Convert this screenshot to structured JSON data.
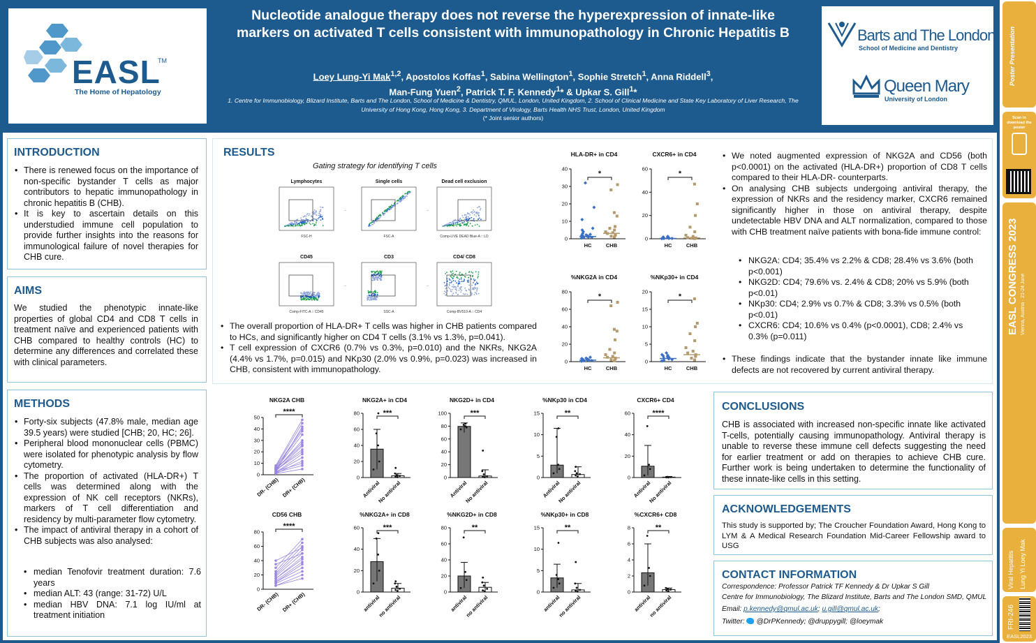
{
  "header": {
    "title": "Nucleotide analogue therapy does not reverse the hyperexpression of innate-like markers on activated T cells consistent with immunopathology in Chronic Hepatitis B",
    "author_presenter": "Loey Lung-Yi Mak",
    "author_presenter_sup": "1,2",
    "authors_rest_1": ", Apostolos Koffas",
    "sup1": "1",
    "authors_rest_2": ", Sabina Wellington",
    "sup2": "1",
    "authors_rest_3": ", Sophie Stretch",
    "sup3": "1",
    "authors_rest_4": ", Anna Riddell",
    "sup4": "3",
    "authors_rest_5": ",",
    "authors_line2_a": "Man-Fung Yuen",
    "sup5": "2",
    "authors_line2_b": ", Patrick T. F. Kennedy",
    "sup6": "1",
    "authors_line2_c": "* & Upkar S. Gill",
    "sup7": "1",
    "authors_line2_d": "*",
    "affiliations": "1. Centre for Immunobiology, Blizard Institute, Barts and The London, School of Medicine & Dentistry, QMUL, London, United Kingdom, 2. School of Clinical Medicine and State Key Laboratory of Liver Research, The University of Hong Kong, Hong Kong, 3. Department of Virology, Barts Health NHS Trust, London, United Kingdom",
    "joint_note": "(* Joint senior authors)"
  },
  "logos": {
    "easl_word": "EASL",
    "easl_tm": "TM",
    "easl_tagline": "The Home of Hepatology",
    "barts_name": "Barts and The London",
    "barts_sub": "School of Medicine and Dentistry",
    "qm_name": "Queen Mary",
    "qm_sub": "University of London"
  },
  "sections": {
    "introduction": {
      "heading": "INTRODUCTION",
      "bullets": [
        "There is renewed focus on the importance of non-specific bystander T cells as major contributors to hepatic immunopathology in chronic hepatitis B (CHB).",
        "It is key to ascertain details on this understudied immune cell population to provide further insights into the reasons for immunological failure of novel therapies for CHB cure."
      ]
    },
    "aims": {
      "heading": "AIMS",
      "text": "We studied the phenotypic innate-like properties of global CD4 and CD8 T cells in treatment naïve and experienced patients with CHB compared to healthy controls (HC) to determine any differences and correlated these with clinical parameters."
    },
    "methods": {
      "heading": "METHODS",
      "bullets": [
        "Forty-six subjects (47.8% male, median age 39.5 years) were studied [CHB; 20, HC; 26].",
        "Peripheral blood mononuclear cells (PBMC) were isolated for phenotypic analysis by flow cytometry.",
        "The proportion of activated (HLA-DR+) T cells was determined along with the expression of NK cell receptors (NKRs), markers of T cell differentiation and residency by multi-parameter flow cytometry.",
        "The impact of antiviral therapy in a cohort of CHB subjects was also analysed:"
      ],
      "sub_bullets": [
        "median Tenofovir treatment duration: 7.6 years",
        "median ALT: 43 (range: 31-72) U/L",
        "median HBV DNA: 7.1 log IU/ml at treatment initiation"
      ]
    },
    "results": {
      "heading": "RESULTS",
      "gating_caption": "Gating strategy for identifying T cells",
      "gating_panels": [
        "Lymphocytes",
        "Single cells",
        "Dead cell exclusion",
        "CD45",
        "CD3",
        "CD4/ CD8"
      ],
      "gating_xlabels": [
        "FSC-H",
        "FSC-A",
        "Comp-LIVE DEAD Blue-A :: LD",
        "Comp-FITC-A :: CD45",
        "SSC-A",
        "Comp-BV510-A :: CD4"
      ],
      "bullets_mid": [
        "The overall proportion of HLA-DR+ T cells was higher in CHB patients compared to HCs, and significantly higher on CD4 T cells (3.1% vs 1.3%, p=0.041).",
        "T cell expression of CXCR6 (0.7% vs 0.3%, p=0.010) and the NKRs, NKG2A (4.4% vs 1.7%, p=0.015) and NKp30 (2.0% vs 0.9%, p=0.023) was increased in CHB, consistent with immunopathology."
      ],
      "bullets_right": [
        "We noted augmented expression of NKG2A and CD56 (both p<0.0001) on the activated (HLA-DR+) proportion of CD8 T cells compared to their HLA-DR- counterparts.",
        "On analysing CHB subjects undergoing antiviral therapy, the expression of NKRs and the residency marker, CXCR6 remained significantly higher in those on antiviral therapy, despite undetectable HBV DNA and ALT normalization, compared to those with CHB treatment naïve patients with bona-fide immune control:"
      ],
      "right_sub": [
        "NKG2A: CD4; 35.4% vs 2.2% & CD8; 28.4% vs 3.6% (both p<0.001)",
        "NKG2D: CD4; 79.6% vs. 2.4% & CD8; 20% vs 5.9% (both p<0.01)",
        "NKp30: CD4; 2.9% vs 0.7% & CD8; 3.3% vs 0.5% (both p<0.01)",
        "CXCR6: CD4; 10.6% vs 0.4% (p<0.0001), CD8; 2.4% vs 0.3% (p=0.011)"
      ],
      "bullet_final": "These findings indicate that the bystander innate like immune defects are not recovered by current antiviral therapy."
    },
    "conclusions": {
      "heading": "CONCLUSIONS",
      "text": "CHB is associated with increased non-specific innate like activated T-cells, potentially causing immunopathology. Antiviral therapy is unable to reverse these immune cell defects suggesting the need for earlier treatment or add on therapies to achieve CHB cure. Further work is being undertaken to determine the functionality of these innate-like  cells in this setting."
    },
    "acknowledgements": {
      "heading": "ACKNOWLEDGEMENTS",
      "text": "This study is supported by; The Croucher Foundation Award, Hong Kong to LYM & A Medical Research Foundation Mid-Career Fellowship award to USG"
    },
    "contact": {
      "heading": "CONTACT INFORMATION",
      "line1": "Correspondence: Professor Patrick TF Kennedy & Dr Upkar S Gill",
      "line2": "Centre for Immunobiology, The Blizard Institute, Barts and The London SMD, QMUL",
      "email_label": "Email: ",
      "email1": "p.kennedy@qmul.ac.uk",
      "email_sep": "; ",
      "email2": "u.gill@qmul.ac.uk",
      "email_end": ";",
      "twitter_label": "Twitter: ",
      "twitter_handles": "@DrPKennedy; @druppygill; @loeymak"
    }
  },
  "sidebar": {
    "scan_text": "Scan to download the poster",
    "congress": "EASL CONGRESS 2023",
    "congress_loc": "Vienna, Austria · 21-24 June",
    "track": "Viral Hepatitis",
    "presenter": "Lung Yi Loey Mak",
    "poster_code": "FRI-246",
    "footer": "EASL2023"
  },
  "colors": {
    "brand_blue": "#1d5a8e",
    "hc_blue": "#3a6fc4",
    "chb_tan": "#b59a6e",
    "panel_border": "#8fc4de",
    "sidebar_gold": "#e9b03e"
  },
  "chart_data": [
    {
      "id": "hla-cd4",
      "type": "scatter",
      "title": "HLA-DR+ in CD4",
      "categories": [
        "HC",
        "CHB"
      ],
      "ylim": [
        0,
        40
      ],
      "yticks": [
        0,
        10,
        20,
        30,
        40
      ],
      "sig": "*",
      "means": [
        1.3,
        3.1
      ],
      "points": [
        [
          0.4,
          0.6,
          0.8,
          1.0,
          1.1,
          1.2,
          1.4,
          1.5,
          1.7,
          2.0,
          2.2,
          2.5,
          3,
          4,
          5,
          6,
          11,
          18,
          32
        ],
        [
          1,
          1.5,
          2,
          2.5,
          3,
          3.5,
          4,
          5,
          6,
          7,
          13,
          15,
          28,
          31
        ]
      ]
    },
    {
      "id": "cxcr6-cd4",
      "type": "scatter",
      "title": "CXCR6+ in CD4",
      "categories": [
        "HC",
        "CHB"
      ],
      "ylim": [
        0,
        60
      ],
      "yticks": [
        0,
        20,
        40,
        60
      ],
      "sig": "*",
      "means": [
        0.3,
        0.7
      ],
      "points": [
        [
          0.1,
          0.2,
          0.3,
          0.4,
          0.5,
          0.6,
          1,
          1.5,
          2
        ],
        [
          0.2,
          0.4,
          0.5,
          0.7,
          1,
          2,
          3,
          6,
          10,
          20,
          30,
          47
        ]
      ]
    },
    {
      "id": "nkg2a-cd4",
      "type": "scatter",
      "title": "%NKG2A in CD4",
      "categories": [
        "HC",
        "CHB"
      ],
      "ylim": [
        0,
        80
      ],
      "yticks": [
        0,
        20,
        40,
        60,
        80
      ],
      "sig": "*",
      "means": [
        1.7,
        4.4
      ],
      "points": [
        [
          0.5,
          1,
          1.2,
          1.5,
          1.7,
          2,
          2.2,
          2.5,
          3,
          3.5,
          4,
          5
        ],
        [
          1,
          2,
          3,
          4,
          5,
          6,
          8,
          10,
          14,
          25,
          35,
          37,
          64,
          68
        ]
      ]
    },
    {
      "id": "nkp30-cd4",
      "type": "scatter",
      "title": "%NKp30+ in CD4",
      "categories": [
        "HC",
        "CHB"
      ],
      "ylim": [
        0,
        20
      ],
      "yticks": [
        0,
        5,
        10,
        15,
        20
      ],
      "sig": "*",
      "means": [
        0.9,
        2.0
      ],
      "points": [
        [
          0.2,
          0.4,
          0.6,
          0.8,
          1,
          1.2,
          1.4,
          1.6,
          1.8,
          2,
          2.5
        ],
        [
          0.5,
          1,
          1.5,
          2,
          2.5,
          3,
          4,
          6,
          8,
          10,
          11,
          18
        ]
      ]
    },
    {
      "id": "nkg2a-chb",
      "type": "paired",
      "title": "NKG2A CHB",
      "categories": [
        "DR- (CHB)",
        "DR+ (CHB)"
      ],
      "ylim": [
        0,
        50
      ],
      "yticks": [
        0,
        10,
        20,
        30,
        40,
        50
      ],
      "sig": "****",
      "pairs": [
        [
          1,
          12
        ],
        [
          2,
          18
        ],
        [
          3,
          25
        ],
        [
          4,
          30
        ],
        [
          5,
          35
        ],
        [
          6,
          40
        ],
        [
          7,
          45
        ],
        [
          8,
          48
        ],
        [
          2,
          8
        ],
        [
          3,
          10
        ],
        [
          4,
          22
        ],
        [
          5,
          28
        ],
        [
          6,
          38
        ],
        [
          1,
          5
        ],
        [
          2,
          15
        ],
        [
          3,
          42
        ],
        [
          4,
          20
        ],
        [
          5,
          26
        ]
      ]
    },
    {
      "id": "cd56-chb",
      "type": "paired",
      "title": "CD56 CHB",
      "categories": [
        "DR- (CHB)",
        "DR+ (CHB)"
      ],
      "ylim": [
        0,
        80
      ],
      "yticks": [
        0,
        20,
        40,
        60,
        80
      ],
      "sig": "****",
      "pairs": [
        [
          5,
          20
        ],
        [
          10,
          30
        ],
        [
          15,
          45
        ],
        [
          20,
          55
        ],
        [
          25,
          65
        ],
        [
          30,
          70
        ],
        [
          8,
          25
        ],
        [
          12,
          38
        ],
        [
          18,
          50
        ],
        [
          22,
          60
        ],
        [
          35,
          50
        ],
        [
          40,
          58
        ],
        [
          5,
          15
        ],
        [
          10,
          35
        ],
        [
          15,
          42
        ]
      ]
    },
    {
      "id": "nkg2a-cd4-av",
      "type": "bar",
      "title": "NKG2A+ in CD4",
      "categories": [
        "Antiviral",
        "No antiviral"
      ],
      "ylim": [
        0,
        80
      ],
      "yticks": [
        0,
        20,
        40,
        60,
        80
      ],
      "sig": "***",
      "values": [
        35.4,
        2.2
      ],
      "err": [
        [
          10,
          60
        ],
        [
          1,
          5
        ]
      ],
      "points": [
        [
          10,
          20,
          40,
          55,
          80
        ],
        [
          0.5,
          1,
          2,
          3,
          5,
          12
        ]
      ]
    },
    {
      "id": "nkg2d-cd4-av",
      "type": "bar",
      "title": "NKG2D+ in CD4",
      "categories": [
        "Antiviral",
        "No antiviral"
      ],
      "ylim": [
        0,
        100
      ],
      "yticks": [
        0,
        20,
        40,
        60,
        80,
        100
      ],
      "sig": "***",
      "values": [
        79.6,
        2.4
      ],
      "err": [
        [
          70,
          85
        ],
        [
          0.5,
          12
        ]
      ],
      "points": [
        [
          75,
          78,
          80,
          82,
          84
        ],
        [
          0.5,
          1,
          2,
          5,
          10,
          42
        ]
      ]
    },
    {
      "id": "nkp30-cd4-av",
      "type": "bar",
      "title": "%NKp30 in CD4",
      "categories": [
        "Antiviral",
        "No antiviral"
      ],
      "ylim": [
        0,
        15
      ],
      "yticks": [
        0,
        5,
        10,
        15
      ],
      "sig": "**",
      "values": [
        2.9,
        0.7
      ],
      "err": [
        [
          1,
          11.5
        ],
        [
          0.3,
          2.5
        ]
      ],
      "points": [
        [
          1,
          2,
          3,
          9.5,
          11.5
        ],
        [
          0.2,
          0.5,
          0.8,
          1,
          1.5,
          2.5
        ]
      ]
    },
    {
      "id": "cxcr6-cd4-av",
      "type": "bar",
      "title": "CXCR6+ CD4",
      "categories": [
        "Antiviral",
        "No antiviral"
      ],
      "ylim": [
        0,
        60
      ],
      "yticks": [
        0,
        20,
        40,
        60
      ],
      "sig": "****",
      "values": [
        10.6,
        0.4
      ],
      "err": [
        [
          2,
          30
        ],
        [
          0.1,
          1
        ]
      ],
      "points": [
        [
          2,
          8,
          12,
          48
        ],
        [
          0.1,
          0.2,
          0.4,
          0.6
        ]
      ]
    },
    {
      "id": "nkg2a-cd8-av",
      "type": "bar",
      "title": "%NKG2A+ in CD8",
      "categories": [
        "antiviral",
        "no antiviral"
      ],
      "ylim": [
        0,
        60
      ],
      "yticks": [
        0,
        20,
        40,
        60
      ],
      "sig": "***",
      "values": [
        28.4,
        3.6
      ],
      "err": [
        [
          10,
          50
        ],
        [
          1,
          8
        ]
      ],
      "points": [
        [
          8,
          20,
          35,
          50,
          55
        ],
        [
          1,
          2,
          3,
          5,
          8,
          10
        ]
      ]
    },
    {
      "id": "nkg2d-cd8-av",
      "type": "bar",
      "title": "%NKG2D+ in CD8",
      "categories": [
        "antiviral",
        "no antiviral"
      ],
      "ylim": [
        0,
        80
      ],
      "yticks": [
        0,
        20,
        40,
        60,
        80
      ],
      "sig": "**",
      "values": [
        20,
        5.9
      ],
      "err": [
        [
          5,
          37
        ],
        [
          2,
          12
        ]
      ],
      "points": [
        [
          5,
          15,
          25,
          68
        ],
        [
          1,
          2,
          4,
          8,
          12,
          18
        ]
      ]
    },
    {
      "id": "nkp30-cd8-av",
      "type": "bar",
      "title": "%NKp30+ in CD8",
      "categories": [
        "antiviral",
        "no antiviral"
      ],
      "ylim": [
        0,
        15
      ],
      "yticks": [
        0,
        5,
        10,
        15
      ],
      "sig": "**",
      "values": [
        3.3,
        0.5
      ],
      "err": [
        [
          1,
          6.5
        ],
        [
          0.1,
          2
        ]
      ],
      "points": [
        [
          1,
          2,
          3,
          4,
          11.5
        ],
        [
          0.1,
          0.3,
          0.5,
          1,
          2,
          7
        ]
      ]
    },
    {
      "id": "cxcr6-cd8-av",
      "type": "bar",
      "title": "%CXCR6+ CD8",
      "categories": [
        "antiviral",
        "no antiviral"
      ],
      "ylim": [
        0,
        8
      ],
      "yticks": [
        0,
        2,
        4,
        6,
        8
      ],
      "sig": "**",
      "values": [
        2.4,
        0.3
      ],
      "err": [
        [
          0.8,
          6
        ],
        [
          0.1,
          0.5
        ]
      ],
      "points": [
        [
          0.8,
          2,
          3,
          7
        ],
        [
          0.1,
          0.2,
          0.3,
          0.4,
          0.5
        ]
      ]
    }
  ]
}
